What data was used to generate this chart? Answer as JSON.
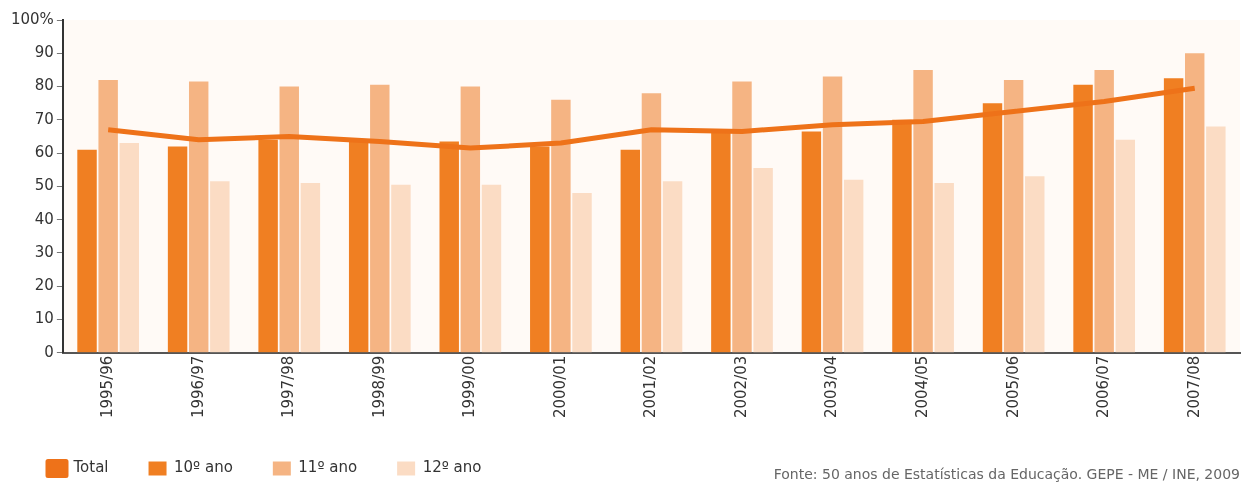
{
  "chart_data": {
    "type": "bar",
    "categories": [
      "1995/96",
      "1996/97",
      "1997/98",
      "1998/99",
      "1999/00",
      "2000/01",
      "2001/02",
      "2002/03",
      "2003/04",
      "2004/05",
      "2005/06",
      "2006/07",
      "2007/08"
    ],
    "series": [
      {
        "name": "10º ano",
        "color": "#f07f22",
        "values": [
          61,
          62,
          64,
          64,
          63.5,
          62,
          61,
          66,
          66.5,
          70,
          75,
          80.5,
          82.5
        ]
      },
      {
        "name": "11º ano",
        "color": "#f5b483",
        "values": [
          82,
          81.5,
          80,
          80.5,
          80,
          76,
          78,
          81.5,
          83,
          85,
          82,
          85,
          90
        ]
      },
      {
        "name": "12º ano",
        "color": "#fbdcc4",
        "values": [
          63,
          51.5,
          51,
          50.5,
          50.5,
          48,
          51.5,
          55.5,
          52,
          51,
          53,
          64,
          68
        ]
      },
      {
        "name": "Total",
        "type": "line",
        "color": "#ee7219",
        "values": [
          67,
          64,
          65,
          63.5,
          61.5,
          63,
          67,
          66.5,
          68.5,
          69.5,
          72.5,
          75.5,
          79.5
        ]
      }
    ],
    "ylim": [
      0,
      100
    ],
    "yticks": [
      0,
      10,
      20,
      30,
      40,
      50,
      60,
      70,
      80,
      90,
      {
        "value": 100,
        "label": "100%"
      }
    ],
    "grid": false,
    "legend": "bottom left",
    "marker": "none",
    "annotations": [
      "Fonte: 50 anos de Estatísticas da Educação. GEPE - ME / INE, 2009"
    ]
  }
}
